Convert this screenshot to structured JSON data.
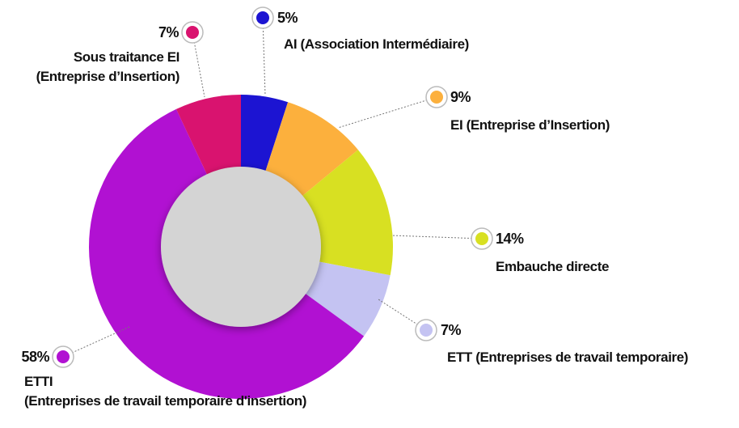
{
  "chart_data": {
    "type": "donut",
    "categories": [
      "AI (Association Intermédiaire)",
      "EI (Entreprise d’Insertion)",
      "Embauche directe",
      "ETT (Entreprises de travail temporaire)",
      "ETTI\n(Entreprises de travail temporaire d'insertion)",
      "Sous traitance EI\n(Entreprise d’Insertion)"
    ],
    "values": [
      5,
      9,
      14,
      7,
      58,
      7
    ],
    "value_labels": [
      "5%",
      "9%",
      "14%",
      "7%",
      "58%",
      "7%"
    ],
    "colors": [
      "#1c14d2",
      "#fcb03d",
      "#d8e022",
      "#c4c3f2",
      "#b111d2",
      "#d9136f"
    ]
  }
}
